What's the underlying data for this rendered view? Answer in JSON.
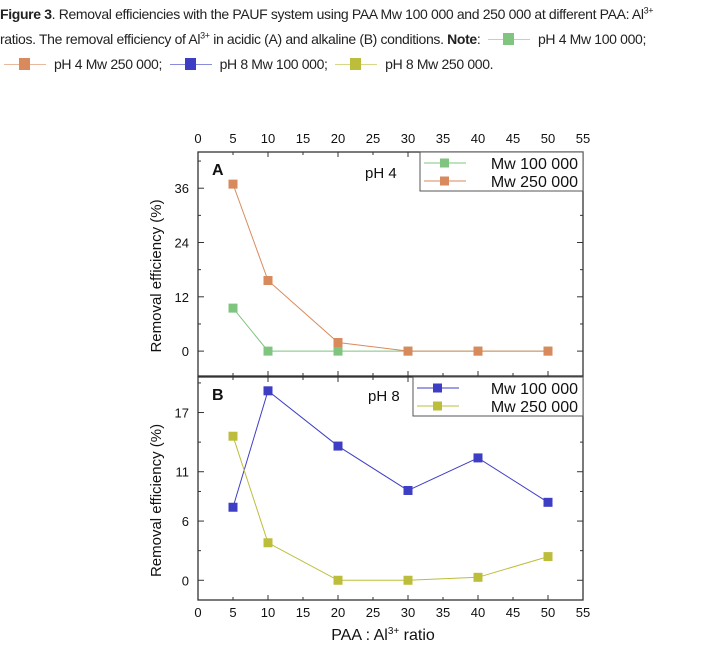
{
  "caption": {
    "figure_label": "Figure 3",
    "text_1": ". Removal efficiencies with the PAUF system using PAA Mw 100 000 and 250 000 at different PAA: Al",
    "sup": "3+",
    "text_2": "ratios. The removal efficiency of Al",
    "text_3": " in acidic (A) and alkaline (B) conditions. ",
    "note_label": "Note",
    "note_colon": ":",
    "legend": [
      {
        "label": "pH 4 Mw 100 000;",
        "color": "#7fc47f"
      },
      {
        "label": "pH 4 Mw 250 000;",
        "color": "#d98a5c"
      },
      {
        "label": "pH 8 Mw 100 000;",
        "color": "#3e3ec4"
      },
      {
        "label": "pH 8 Mw 250 000.",
        "color": "#bdbd3c"
      }
    ]
  },
  "chart_data": [
    {
      "type": "line",
      "panel": "A",
      "annotation": "pH 4",
      "ylabel": "Removal efficiency (%)",
      "xlim": [
        0,
        55
      ],
      "ylim": [
        -5.5,
        44
      ],
      "xticks": [
        0,
        5,
        10,
        15,
        20,
        25,
        30,
        35,
        40,
        45,
        50,
        55
      ],
      "yticks": [
        0,
        12,
        24,
        36
      ],
      "x_axis_position": "top",
      "legend_placement": "top-right",
      "x": [
        5,
        10,
        20,
        30,
        40,
        50
      ],
      "series": [
        {
          "name": "Mw 100 000",
          "color": "#7fc47f",
          "values": [
            9.5,
            0,
            0,
            0,
            0,
            0
          ]
        },
        {
          "name": "Mw 250 000",
          "color": "#d98a5c",
          "values": [
            36.9,
            15.6,
            1.9,
            0,
            0,
            0
          ]
        }
      ]
    },
    {
      "type": "line",
      "panel": "B",
      "annotation": "pH 8",
      "ylabel": "Removal efficiency (%)",
      "xlabel_pre": "PAA : Al",
      "xlabel_sup": "3+",
      "xlabel_post": " ratio",
      "xlim": [
        0,
        55
      ],
      "ylim": [
        -2,
        20.6
      ],
      "xticks": [
        0,
        5,
        10,
        15,
        20,
        25,
        30,
        35,
        40,
        45,
        50,
        55
      ],
      "yticks": [
        0,
        6,
        11,
        17
      ],
      "legend_placement": "top-right",
      "x": [
        5,
        10,
        20,
        30,
        40,
        50
      ],
      "series": [
        {
          "name": "Mw 100 000",
          "color": "#3e3ec4",
          "values": [
            7.4,
            19.2,
            13.6,
            9.1,
            12.4,
            7.9
          ]
        },
        {
          "name": "Mw 250 000",
          "color": "#bdbd3c",
          "values": [
            14.6,
            3.8,
            0,
            0,
            0.3,
            2.4
          ]
        }
      ]
    }
  ]
}
